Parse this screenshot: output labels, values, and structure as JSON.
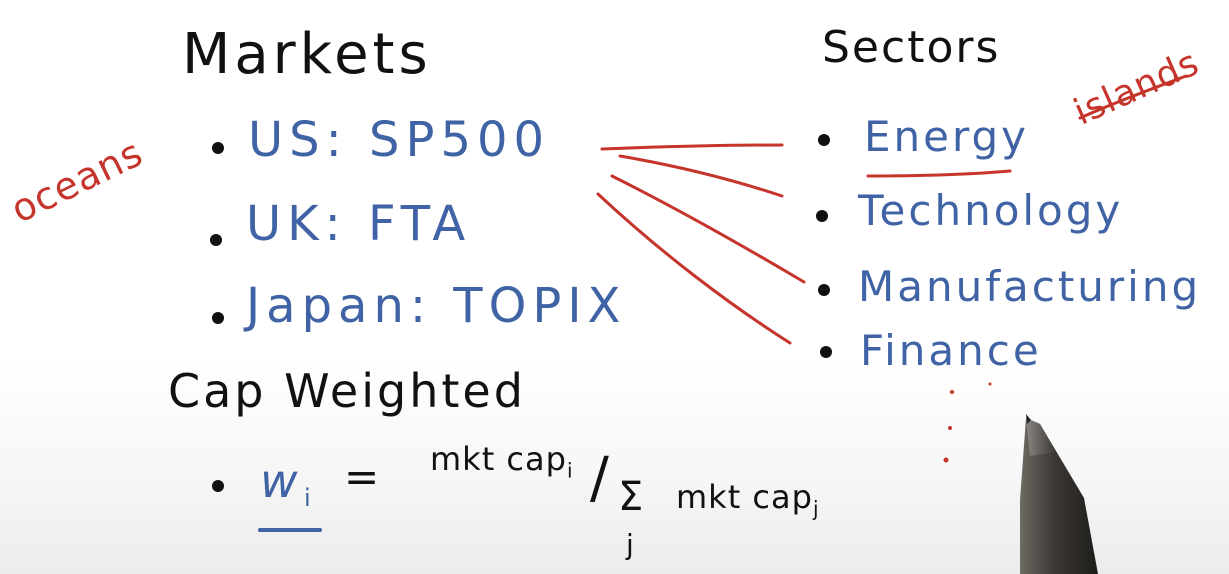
{
  "headings": {
    "markets": "Markets",
    "sectors": "Sectors",
    "cap_weighted": "Cap Weighted"
  },
  "markets": [
    {
      "label": "US: SP500"
    },
    {
      "label": "UK: FTA"
    },
    {
      "label": "Japan: TOPIX"
    }
  ],
  "sectors": [
    {
      "label": "Energy"
    },
    {
      "label": "Technology"
    },
    {
      "label": "Manufacturing"
    },
    {
      "label": "Finance"
    }
  ],
  "annotations": {
    "oceans": "oceans",
    "islands": "islands"
  },
  "formula": {
    "weight_symbol": "w",
    "weight_subscript": "i",
    "equals": "=",
    "numerator": "mkt cap",
    "numerator_subscript": "i",
    "slash": "/",
    "sum": "Σ",
    "sum_index": "j",
    "denominator": "mkt cap",
    "denominator_subscript": "j"
  },
  "colors": {
    "ink_black": "#111111",
    "ink_blue": "#3f63a4",
    "ink_red": "#c6352c"
  },
  "icons": {
    "pen": "pen-icon"
  }
}
